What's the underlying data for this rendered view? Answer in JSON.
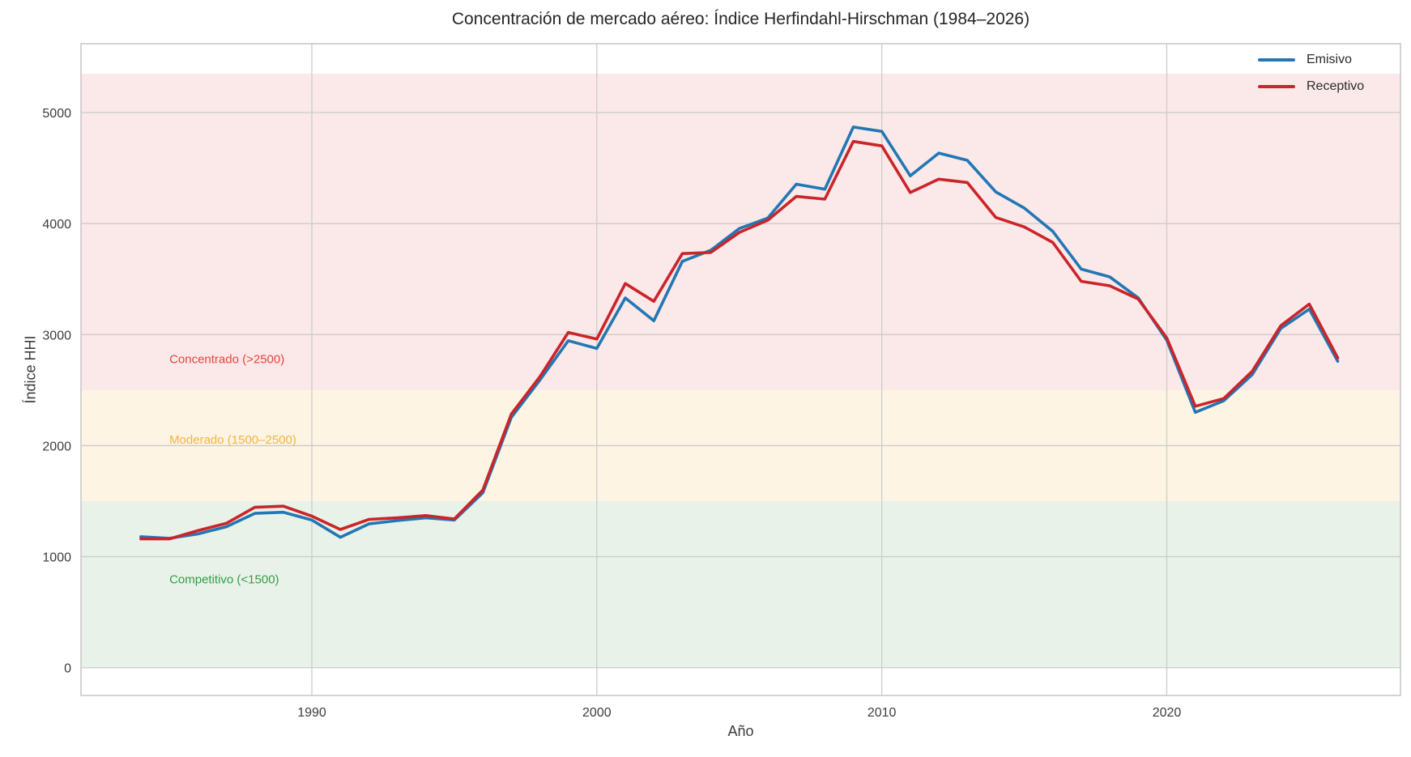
{
  "title": "Concentración de mercado aéreo: Índice Herfindahl-Hirschman (1984–2026)",
  "xlabel": "Año",
  "ylabel": "Índice HHI",
  "legend": [
    {
      "label": "Emisivo",
      "color": "#2277b4"
    },
    {
      "label": "Receptivo",
      "color": "#cb2429"
    }
  ],
  "colors": {
    "emisivo_line": "#2277b4",
    "receptivo_line": "#cb2429",
    "band_competitivo": "#e9f2e9",
    "band_moderado": "#fdf4e4",
    "band_concentrado": "#fbe9e9",
    "gridline": "#cccccc",
    "plot_border": "#c9c9c9",
    "text_dark": "#262626"
  },
  "chart_data": {
    "type": "line",
    "title": "Concentración de mercado aéreo: Índice Herfindahl-Hirschman (1984–2026)",
    "xlabel": "Año",
    "ylabel": "Índice HHI",
    "xlim": [
      1981.9,
      2028.2
    ],
    "ylim": [
      -250,
      5620
    ],
    "xticks": [
      1990,
      2000,
      2010,
      2020
    ],
    "yticks": [
      0,
      1000,
      2000,
      3000,
      4000,
      5000
    ],
    "grid": true,
    "legend_position": "upper right",
    "x": [
      1984,
      1985,
      1986,
      1987,
      1988,
      1989,
      1990,
      1991,
      1992,
      1993,
      1994,
      1995,
      1996,
      1997,
      1998,
      1999,
      2000,
      2001,
      2002,
      2003,
      2004,
      2005,
      2006,
      2007,
      2008,
      2009,
      2010,
      2011,
      2012,
      2013,
      2014,
      2015,
      2016,
      2017,
      2018,
      2019,
      2020,
      2021,
      2022,
      2023,
      2024,
      2025,
      2026
    ],
    "series": [
      {
        "name": "Emisivo",
        "color": "#2277b4",
        "values": [
          1180,
          1165,
          1205,
          1270,
          1390,
          1400,
          1330,
          1175,
          1295,
          1325,
          1350,
          1330,
          1575,
          2255,
          2590,
          2945,
          2875,
          3330,
          3125,
          3660,
          3760,
          3955,
          4050,
          4355,
          4310,
          4870,
          4830,
          4430,
          4635,
          4570,
          4285,
          4140,
          3930,
          3590,
          3520,
          3330,
          2950,
          2300,
          2405,
          2640,
          3055,
          3230,
          2760
        ]
      },
      {
        "name": "Receptivo",
        "color": "#cb2429",
        "values": [
          1160,
          1160,
          1235,
          1300,
          1445,
          1455,
          1365,
          1245,
          1335,
          1350,
          1370,
          1340,
          1600,
          2285,
          2620,
          3020,
          2960,
          3460,
          3300,
          3730,
          3740,
          3920,
          4030,
          4245,
          4220,
          4740,
          4700,
          4280,
          4400,
          4370,
          4055,
          3970,
          3830,
          3480,
          3440,
          3320,
          2970,
          2355,
          2425,
          2670,
          3080,
          3275,
          2790
        ]
      }
    ],
    "bands": [
      {
        "name": "competitivo",
        "label": "Competitivo (<1500)",
        "from": 0,
        "to": 1500,
        "fill": "#e9f2e9",
        "label_color": "#2f9e41",
        "label_x": 1985,
        "label_y": 795
      },
      {
        "name": "moderado",
        "label": "Moderado (1500–2500)",
        "from": 1500,
        "to": 2500,
        "fill": "#fdf4e4",
        "label_color": "#f3b43d",
        "label_x": 1985,
        "label_y": 2055
      },
      {
        "name": "concentrado",
        "label": "Concentrado (>2500)",
        "from": 2500,
        "to": 5350,
        "fill": "#fbe9e9",
        "label_color": "#e8433c",
        "label_x": 1985,
        "label_y": 2780
      }
    ]
  }
}
